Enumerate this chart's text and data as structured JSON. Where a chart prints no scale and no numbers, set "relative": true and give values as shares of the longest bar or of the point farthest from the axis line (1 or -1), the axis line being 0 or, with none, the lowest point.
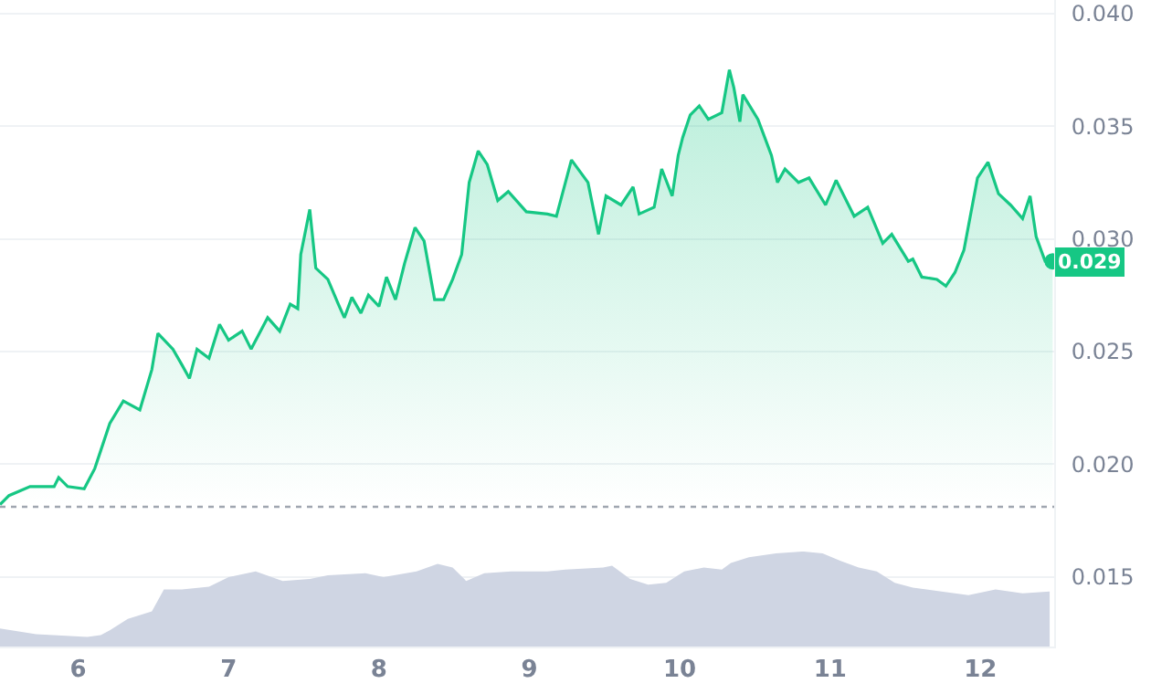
{
  "chart_data": [
    {
      "type": "area",
      "x": [
        5.48,
        5.54,
        5.68,
        5.84,
        5.87,
        5.93,
        6.04,
        6.11,
        6.15,
        6.21,
        6.3,
        6.41,
        6.49,
        6.53,
        6.63,
        6.69,
        6.74,
        6.79,
        6.87,
        6.94,
        7.0,
        7.09,
        7.15,
        7.26,
        7.34,
        7.41,
        7.46,
        7.48,
        7.54,
        7.58,
        7.66,
        7.73,
        7.77,
        7.82,
        7.88,
        7.93,
        8.0,
        8.05,
        8.11,
        8.17,
        8.24,
        8.3,
        8.37,
        8.43,
        8.49,
        8.55,
        8.6,
        8.66,
        8.72,
        8.79,
        8.86,
        8.98,
        9.12,
        9.18,
        9.28,
        9.39,
        9.46,
        9.51,
        9.61,
        9.69,
        9.73,
        9.83,
        9.88,
        9.95,
        9.99,
        10.02,
        10.07,
        10.13,
        10.19,
        10.28,
        10.33,
        10.36,
        10.4,
        10.42,
        10.52,
        10.61,
        10.65,
        10.7,
        10.79,
        10.86,
        10.97,
        11.04,
        11.16,
        11.25,
        11.35,
        11.41,
        11.52,
        11.55,
        11.61,
        11.71,
        11.77,
        11.83,
        11.89,
        11.98,
        12.05,
        12.12,
        12.2,
        12.28,
        12.33,
        12.37,
        12.43,
        12.48
      ],
      "series": [
        {
          "color": "#16c784",
          "values": [
            0.0182,
            0.0186,
            0.019,
            0.019,
            0.0194,
            0.019,
            0.0189,
            0.0198,
            0.0206,
            0.0218,
            0.0228,
            0.0224,
            0.0242,
            0.0258,
            0.0251,
            0.0244,
            0.0238,
            0.0251,
            0.0247,
            0.0262,
            0.0255,
            0.0259,
            0.0251,
            0.0265,
            0.0259,
            0.0271,
            0.0269,
            0.0293,
            0.0313,
            0.0287,
            0.0282,
            0.0271,
            0.0265,
            0.0274,
            0.0267,
            0.0275,
            0.027,
            0.0283,
            0.0273,
            0.0289,
            0.0305,
            0.0299,
            0.0273,
            0.0273,
            0.0282,
            0.0293,
            0.0325,
            0.0339,
            0.0333,
            0.0317,
            0.0321,
            0.0312,
            0.0311,
            0.031,
            0.0335,
            0.0325,
            0.0302,
            0.0319,
            0.0315,
            0.0323,
            0.0311,
            0.0314,
            0.0331,
            0.0319,
            0.0337,
            0.0345,
            0.0355,
            0.0359,
            0.0353,
            0.0356,
            0.0375,
            0.0367,
            0.0352,
            0.0364,
            0.0353,
            0.0337,
            0.0325,
            0.0331,
            0.0325,
            0.0327,
            0.0315,
            0.0326,
            0.031,
            0.0314,
            0.0298,
            0.0302,
            0.029,
            0.0291,
            0.0283,
            0.0282,
            0.0279,
            0.0285,
            0.0295,
            0.0327,
            0.0334,
            0.032,
            0.0315,
            0.0309,
            0.0319,
            0.0301,
            0.029,
            0.029
          ]
        }
      ],
      "xlim": [
        5.48,
        12.49
      ],
      "xticks": [
        6,
        7,
        8,
        9,
        10,
        11,
        12
      ],
      "ylim": [
        0.0119,
        0.0406
      ],
      "yticks": [
        {
          "value": 0.015,
          "label": "0.015"
        },
        {
          "value": 0.02,
          "label": "0.020"
        },
        {
          "value": 0.025,
          "label": "0.025"
        },
        {
          "value": 0.03,
          "label": "0.030"
        },
        {
          "value": 0.035,
          "label": "0.035"
        },
        {
          "value": 0.04,
          "label": "0.040"
        }
      ],
      "grid": "y",
      "ref_lines": [
        {
          "axis": "y",
          "value": 0.0181,
          "color": "#a0a6b0",
          "line_style": "dotted"
        }
      ],
      "annotations": [
        {
          "text": "0.029",
          "x": 12.48,
          "y": 0.029
        }
      ]
    },
    {
      "type": "area",
      "relative": true,
      "tick_labels": false,
      "xlim": [
        5.48,
        12.49
      ],
      "x": [
        5.48,
        5.72,
        6.06,
        6.15,
        6.21,
        6.33,
        6.49,
        6.57,
        6.69,
        6.87,
        7.0,
        7.18,
        7.36,
        7.54,
        7.66,
        7.91,
        8.03,
        8.25,
        8.39,
        8.49,
        8.58,
        8.7,
        8.88,
        9.12,
        9.24,
        9.49,
        9.55,
        9.67,
        9.79,
        9.91,
        10.03,
        10.16,
        10.28,
        10.34,
        10.46,
        10.64,
        10.82,
        10.95,
        11.07,
        11.19,
        11.31,
        11.43,
        11.55,
        11.74,
        11.92,
        12.1,
        12.28,
        12.46
      ],
      "series": [
        {
          "color": "#cfd5e3",
          "values": [
            0.19,
            0.13,
            0.1,
            0.12,
            0.17,
            0.29,
            0.37,
            0.6,
            0.6,
            0.63,
            0.73,
            0.79,
            0.69,
            0.71,
            0.75,
            0.77,
            0.73,
            0.79,
            0.87,
            0.83,
            0.69,
            0.77,
            0.79,
            0.79,
            0.81,
            0.83,
            0.85,
            0.71,
            0.65,
            0.67,
            0.79,
            0.83,
            0.81,
            0.88,
            0.94,
            0.98,
            1,
            0.98,
            0.9,
            0.83,
            0.79,
            0.67,
            0.62,
            0.58,
            0.54,
            0.6,
            0.56,
            0.58
          ]
        }
      ]
    }
  ]
}
